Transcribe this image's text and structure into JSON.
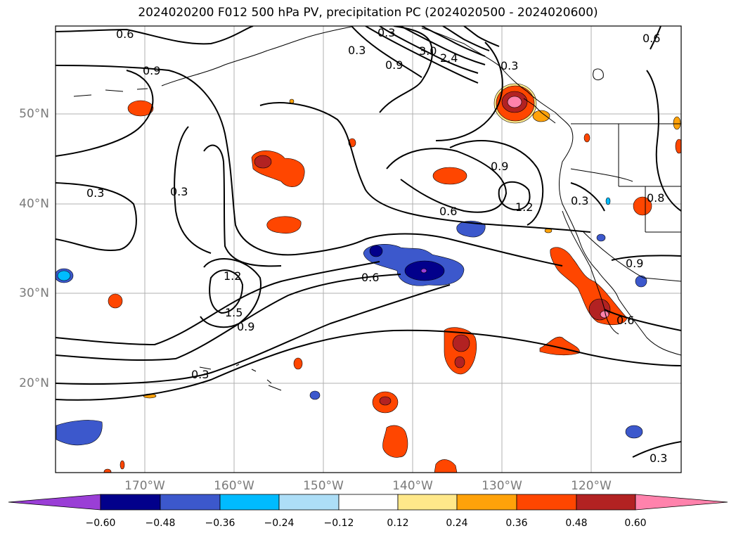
{
  "title": "2024020200 F012 500 hPa PV, precipitation PC (2024020500 - 2024020600)",
  "colors": {
    "purple": "#9a3ed6",
    "navy": "#02008b",
    "royal": "#3c58cc",
    "deepsky": "#00bbff",
    "lightblue": "#addef7",
    "white": "#ffffff",
    "yellow": "#ffe88a",
    "orange": "#ffa20a",
    "orangered": "#ff4600",
    "firebrick": "#b22222",
    "pink": "#ff82ac"
  },
  "map": {
    "lat_labels": [
      "50°N",
      "40°N",
      "30°N",
      "20°N"
    ],
    "lon_labels": [
      "170°W",
      "160°W",
      "150°W",
      "140°W",
      "130°W",
      "120°W"
    ],
    "contour_labels": [
      "0.6",
      "0.9",
      "0.3",
      "0.9",
      "3.0",
      "2.4",
      "0.3",
      "0.3",
      "0.3",
      "0.9",
      "1.2",
      "0.6",
      "0.3",
      "1.2",
      "1.5",
      "0.9",
      "0.6",
      "0.3",
      "0.9",
      "0.6",
      "0.3",
      "0.6",
      "0.8",
      "0.3"
    ]
  },
  "colorbar": {
    "ticks": [
      "−0.60",
      "−0.48",
      "−0.36",
      "−0.24",
      "−0.12",
      "0.12",
      "0.24",
      "0.36",
      "0.48",
      "0.60"
    ]
  }
}
